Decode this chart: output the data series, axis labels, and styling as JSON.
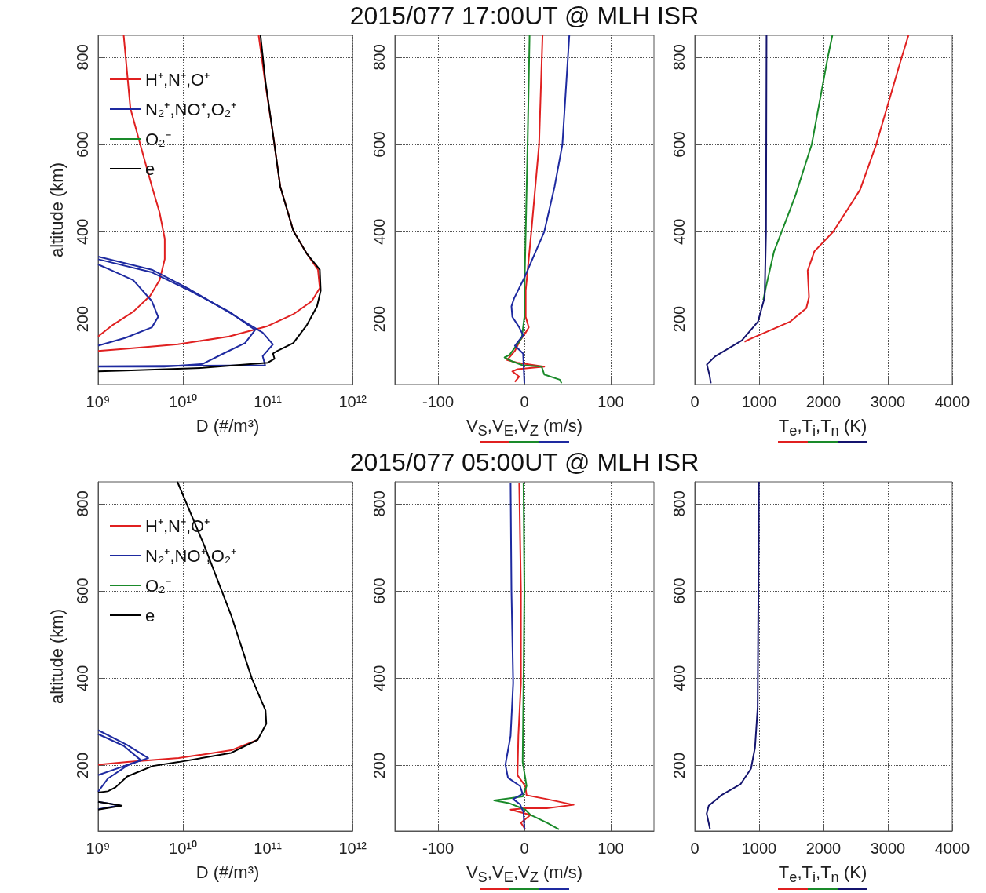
{
  "chart_data": [
    {
      "type": "line",
      "xlabel": "D (#/m³)",
      "ylabel": "altitude (km)",
      "log": "x",
      "xlim": [
        1000000000.0,
        1000000000000.0
      ],
      "xticks": [
        {
          "value": 1000000000.0,
          "label": "10⁹"
        },
        {
          "value": 10000000000.0,
          "label": "10¹⁰"
        },
        {
          "value": 100000000000.0,
          "label": "10¹¹"
        },
        {
          "value": 1000000000000.0,
          "label": "10¹²"
        }
      ],
      "ylim": [
        50,
        850
      ],
      "yticks": [
        200,
        400,
        600,
        800
      ],
      "grid": true,
      "legend": "top left",
      "series": [
        {
          "name": "H⁺,N⁺,O⁺",
          "color": "#e02020",
          "x": [
            1000000000.0,
            1500000000.0,
            2600000000.0,
            4100000000.0,
            5300000000.0,
            6100000000.0,
            6100000000.0,
            5300000000.0,
            4300000000.0,
            3200000000.0,
            2400000000.0,
            2000000000.0
          ],
          "values": [
            160,
            187,
            217,
            253,
            289,
            337,
            384,
            444,
            504,
            594,
            683,
            850
          ]
        },
        {
          "color": "#e02020",
          "x": [
            1000000000.0,
            2100000000.0,
            8700000000.0,
            35000000000.0,
            100000000000.0,
            200000000000.0,
            330000000000.0,
            410000000000.0,
            390000000000.0,
            290000000000.0,
            200000000000.0,
            140000000000.0,
            115000000000.0,
            93000000000.0,
            78000000000.0
          ],
          "values": [
            127,
            132,
            142,
            160,
            184,
            211,
            241,
            271,
            313,
            349,
            402,
            504,
            624,
            743,
            850
          ]
        },
        {
          "name": "N₂⁺,NO⁺,O₂⁺",
          "color": "#1e2aa0",
          "x": [
            1000000000.0,
            2100000000.0,
            4300000000.0,
            5100000000.0,
            4300000000.0,
            2600000000.0,
            1500000000.0,
            1000000000.0
          ],
          "values": [
            139,
            157,
            181,
            205,
            241,
            289,
            310,
            325
          ]
        },
        {
          "color": "#1e2aa0",
          "x": [
            1000000000.0,
            6000000000.0,
            17000000000.0,
            30000000000.0,
            54000000000.0,
            71000000000.0,
            35000000000.0,
            12000000000.0,
            4300000000.0,
            1000000000.0
          ],
          "values": [
            91,
            91,
            97,
            121,
            145,
            175,
            217,
            265,
            307,
            337
          ]
        },
        {
          "color": "#1e2aa0",
          "x": [
            1000000000.0,
            93000000000.0,
            87000000000.0,
            115000000000.0,
            87000000000.0,
            35000000000.0,
            12000000000.0,
            4300000000.0,
            1000000000.0
          ],
          "values": [
            92,
            94,
            115,
            142,
            169,
            215,
            268,
            313,
            343
          ]
        },
        {
          "name": "O₂⁻",
          "color": "#1a8a2a",
          "x": [
            null
          ],
          "values": [
            null
          ]
        },
        {
          "name": "e",
          "color": "#000000",
          "x": [
            1000000000.0,
            2100000000.0,
            17000000000.0,
            100000000000.0,
            120000000000.0,
            115000000000.0,
            130000000000.0,
            200000000000.0,
            290000000000.0,
            380000000000.0,
            420000000000.0,
            410000000000.0,
            290000000000.0,
            200000000000.0,
            140000000000.0,
            115000000000.0,
            94000000000.0,
            82000000000.0
          ],
          "values": [
            80,
            82,
            88,
            100,
            109,
            121,
            127,
            145,
            187,
            229,
            265,
            313,
            349,
            402,
            504,
            624,
            743,
            850
          ]
        }
      ]
    },
    {
      "type": "line",
      "title": "2015/077 17:00UT @ MLH ISR",
      "xlabel": "V$_{S}$,V$_{E}$,V$_{Z}$ (m/s)",
      "xlim": [
        -150,
        150
      ],
      "xticks": [
        -100,
        0,
        100
      ],
      "ylim": [
        50,
        850
      ],
      "yticks": [
        200,
        400,
        600,
        800
      ],
      "grid": true,
      "series": [
        {
          "color": "#e02020",
          "x": [
            -11,
            -6,
            -14,
            -8,
            23,
            -8,
            -20,
            -11,
            -5,
            1.5,
            5,
            1.5,
            1.5,
            8,
            17,
            21
          ],
          "values": [
            56,
            68,
            80,
            85,
            91,
            100,
            106,
            127,
            151,
            169,
            181,
            205,
            265,
            400,
            600,
            850
          ]
        },
        {
          "color": "#1a8a2a",
          "x": [
            43,
            41,
            23,
            20,
            -2,
            -14,
            -23,
            -17,
            -3,
            0,
            0,
            1.5,
            3.7,
            6
          ],
          "values": [
            53,
            61,
            73,
            91,
            94,
            103,
            112,
            118,
            157,
            205,
            265,
            400,
            600,
            850
          ]
        },
        {
          "color": "#1e2aa0",
          "x": [
            0,
            -1.5,
            -11,
            -1.5,
            -6,
            -14,
            -15,
            -12,
            0,
            23,
            35,
            44,
            52
          ],
          "values": [
            53,
            121,
            139,
            163,
            181,
            205,
            229,
            247,
            295,
            400,
            504,
            600,
            850
          ]
        }
      ]
    },
    {
      "type": "line",
      "xlabel": "T$_{e}$,T$_{i}$,T$_{n}$ (K)",
      "xlim": [
        0,
        4000
      ],
      "xticks": [
        0,
        1000,
        2000,
        3000,
        4000
      ],
      "ylim": [
        50,
        850
      ],
      "yticks": [
        200,
        400,
        600,
        800
      ],
      "grid": true,
      "series": [
        {
          "color": "#e02020",
          "x": [
            773,
            856,
            1482,
            1733,
            1775,
            1754,
            1858,
            2151,
            2568,
            2819,
            3216,
            3320
          ],
          "values": [
            148,
            154,
            194,
            225,
            250,
            311,
            355,
            400,
            496,
            600,
            800,
            850
          ]
        },
        {
          "color": "#1a8a2a",
          "x": [
            1065,
            1107,
            1232,
            1441,
            1566,
            1817,
            2067,
            2138
          ],
          "values": [
            244,
            274,
            355,
            435,
            484,
            600,
            800,
            850
          ]
        },
        {
          "color": "#14146e",
          "x": [
            250,
            230,
            188,
            313,
            731,
            982,
            1086,
            1107,
            1115
          ],
          "values": [
            53,
            71,
            96,
            114,
            151,
            194,
            250,
            400,
            850
          ]
        }
      ]
    },
    {
      "type": "line",
      "xlabel": "D (#/m³)",
      "ylabel": "altitude (km)",
      "log": "x",
      "xlim": [
        1000000000.0,
        1000000000000.0
      ],
      "xticks": [
        {
          "value": 1000000000.0,
          "label": "10⁹"
        },
        {
          "value": 10000000000.0,
          "label": "10¹⁰"
        },
        {
          "value": 100000000000.0,
          "label": "10¹¹"
        },
        {
          "value": 1000000000000.0,
          "label": "10¹²"
        }
      ],
      "ylim": [
        50,
        850
      ],
      "yticks": [
        200,
        400,
        600,
        800
      ],
      "grid": true,
      "legend": "top left",
      "series": [
        {
          "name": "H⁺,N⁺,O⁺",
          "color": "#e02020",
          "x": [
            1000000000.0,
            2200000000.0,
            8900000000.0,
            37000000000.0,
            76000000000.0
          ],
          "values": [
            202,
            208,
            217,
            235,
            259
          ]
        },
        {
          "name": "N₂⁺,NO⁺,O₂⁺",
          "color": "#1e2aa0",
          "x": [
            1000000000.0,
            1500000000.0,
            2500000000.0,
            3900000000.0,
            2200000000.0,
            1000000000.0
          ],
          "values": [
            178,
            190,
            205,
            217,
            247,
            281
          ]
        },
        {
          "color": "#1e2aa0",
          "x": [
            1000000000.0,
            1300000000.0,
            2200000000.0,
            3200000000.0,
            2000000000.0,
            1000000000.0
          ],
          "values": [
            140,
            170,
            200,
            212,
            245,
            272
          ]
        },
        {
          "color": "#1e2aa0",
          "x": [
            1000000000.0,
            1800000000.0,
            1000000000.0
          ],
          "values": [
            100,
            109,
            117
          ]
        },
        {
          "name": "O₂⁻",
          "color": "#1a8a2a",
          "x": [
            null
          ],
          "values": [
            null
          ]
        },
        {
          "name": "e",
          "color": "#000000",
          "x": [
            1000000000.0,
            1300000000.0,
            1600000000.0,
            2200000000.0,
            4400000000.0,
            8900000000.0,
            37000000000.0,
            76000000000.0,
            96000000000.0,
            94000000000.0,
            65000000000.0,
            37000000000.0,
            18000000000.0,
            8600000000.0
          ],
          "values": [
            138,
            141,
            150,
            175,
            199,
            208,
            229,
            259,
            296,
            326,
            399,
            544,
            702,
            850
          ]
        },
        {
          "color": "#000000",
          "x": [
            1000000000.0,
            1900000000.0,
            1000000000.0
          ],
          "values": [
            99,
            108,
            117
          ]
        }
      ]
    },
    {
      "type": "line",
      "title": "2015/077 05:00UT @ MLH ISR",
      "xlabel": "V$_{S}$,V$_{E}$,V$_{Z}$ (m/s)",
      "xlim": [
        -150,
        150
      ],
      "xticks": [
        -100,
        0,
        100
      ],
      "ylim": [
        50,
        850
      ],
      "yticks": [
        200,
        400,
        600,
        800
      ],
      "grid": true,
      "series": [
        {
          "color": "#e02020",
          "x": [
            1,
            -4,
            7,
            -16,
            1,
            26,
            57,
            26,
            2.5,
            1,
            -8,
            -7,
            -4,
            -4,
            -6
          ],
          "values": [
            54,
            69,
            87,
            99,
            102,
            102,
            110,
            123,
            132,
            153,
            178,
            268,
            389,
            601,
            848
          ]
        },
        {
          "color": "#1a8a2a",
          "x": [
            40,
            26,
            7,
            1,
            -18,
            -35,
            -2,
            2.5,
            -2,
            -1,
            0,
            -1
          ],
          "values": [
            54,
            69,
            87,
            99,
            114,
            120,
            129,
            153,
            208,
            389,
            601,
            848
          ]
        },
        {
          "color": "#1e2aa0",
          "x": [
            0,
            -1,
            -5,
            -13,
            -2,
            -5,
            -19,
            -22,
            -16,
            -13,
            -15,
            -16
          ],
          "values": [
            54,
            93,
            111,
            123,
            135,
            153,
            172,
            202,
            268,
            389,
            601,
            848
          ]
        }
      ]
    },
    {
      "type": "line",
      "xlabel": "T$_{e}$,T$_{i}$,T$_{n}$ (K)",
      "xlim": [
        0,
        4000
      ],
      "xticks": [
        0,
        1000,
        2000,
        3000,
        4000
      ],
      "ylim": [
        50,
        850
      ],
      "yticks": [
        200,
        400,
        600,
        800
      ],
      "grid": true,
      "series": [
        {
          "color": "#e02020",
          "x": [
            null
          ],
          "values": [
            null
          ]
        },
        {
          "color": "#1a8a2a",
          "x": [
            null
          ],
          "values": [
            null
          ]
        },
        {
          "color": "#14146e",
          "x": [
            238,
            185,
            217,
            423,
            710,
            874,
            936,
            977,
            989,
            997
          ],
          "values": [
            54,
            90,
            108,
            133,
            157,
            193,
            241,
            332,
            601,
            850
          ]
        }
      ]
    }
  ]
}
